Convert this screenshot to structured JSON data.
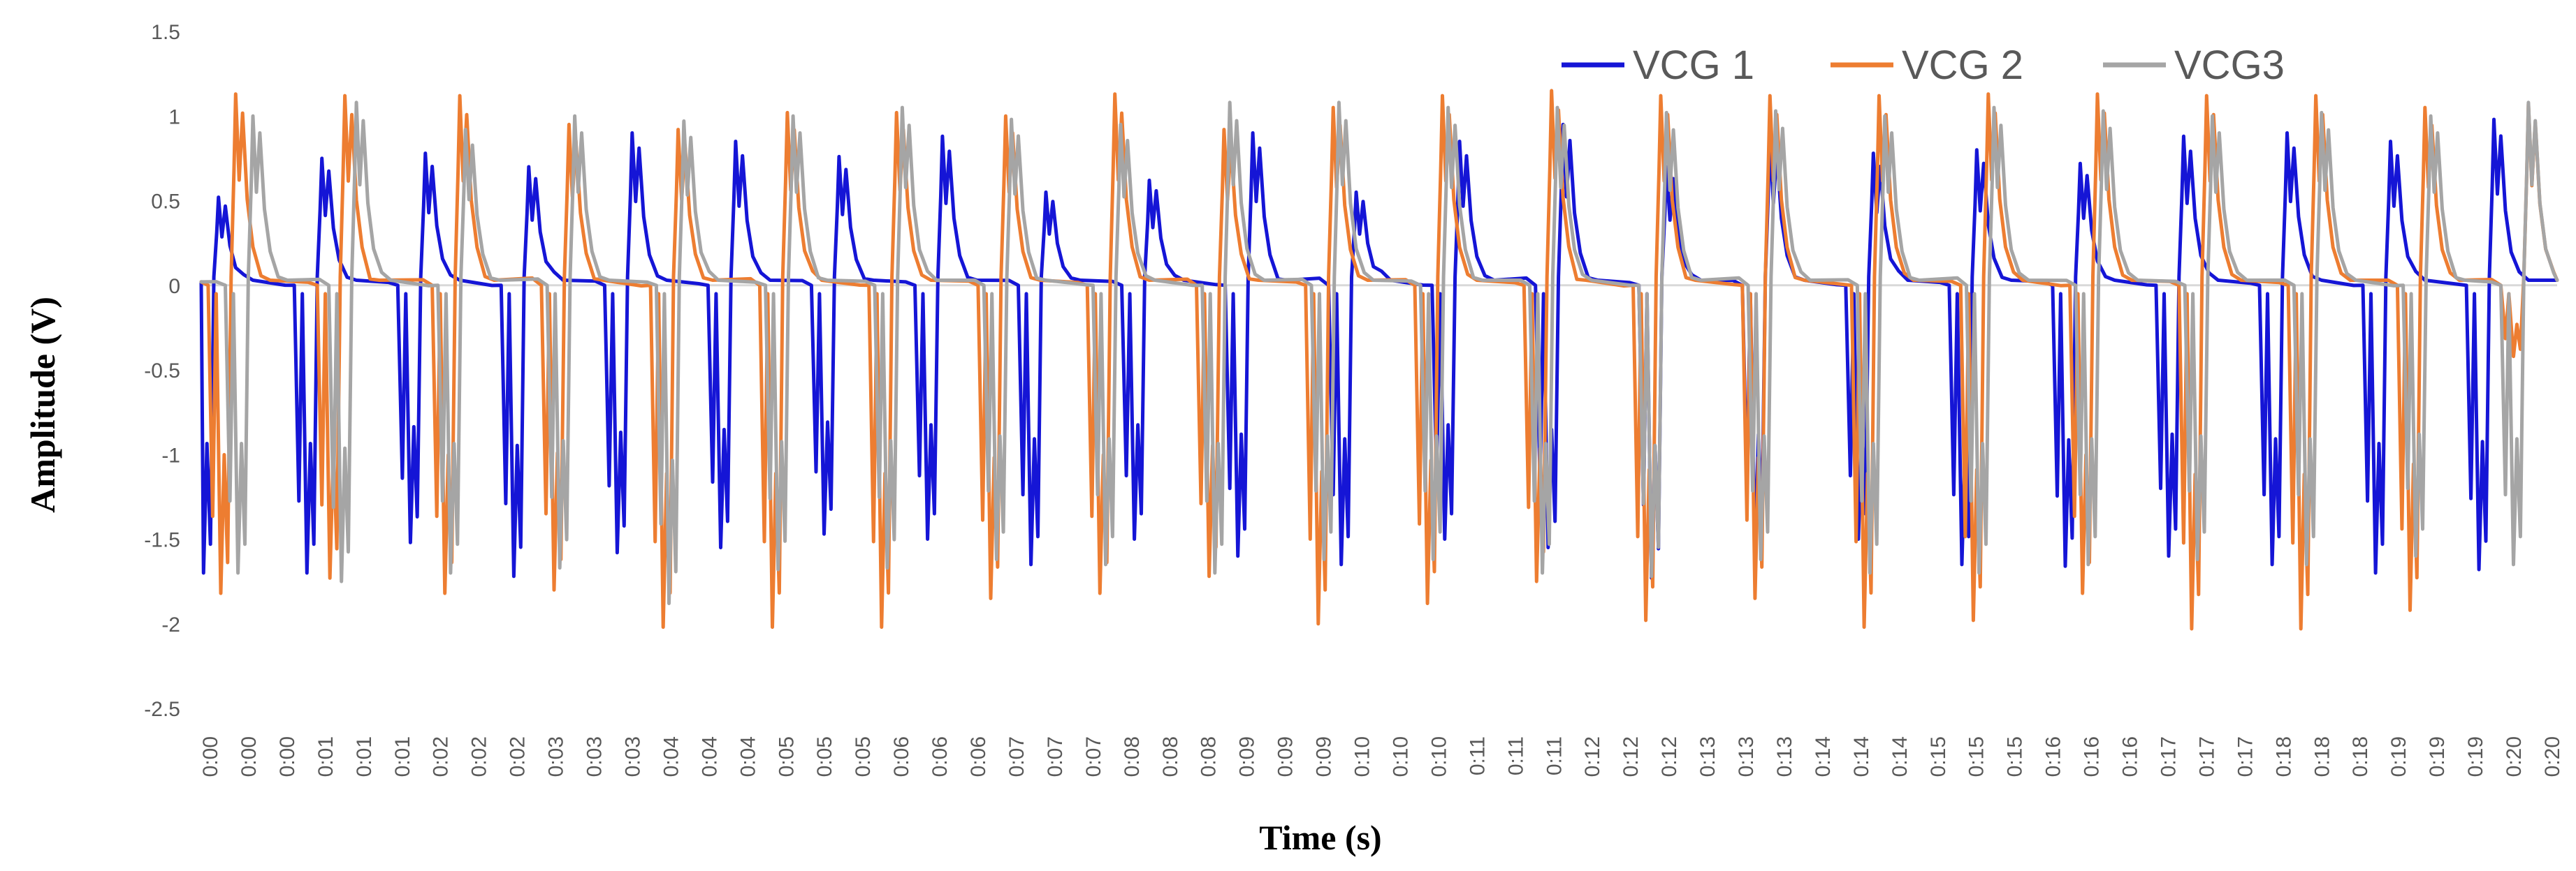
{
  "chart_data": {
    "type": "line",
    "title": "",
    "xlabel": "Time (s)",
    "ylabel": "Amplitude  (V)",
    "ylim": [
      -2.5,
      1.5
    ],
    "y_ticks": [
      "1.5",
      "1",
      "0.5",
      "0",
      "-0.5",
      "-1",
      "-1.5",
      "-2",
      "-2.5"
    ],
    "x_tick_labels": [
      "0:00",
      "0:00",
      "0:00",
      "0:01",
      "0:01",
      "0:01",
      "0:02",
      "0:02",
      "0:02",
      "0:03",
      "0:03",
      "0:03",
      "0:04",
      "0:04",
      "0:04",
      "0:05",
      "0:05",
      "0:05",
      "0:06",
      "0:06",
      "0:06",
      "0:07",
      "0:07",
      "0:07",
      "0:08",
      "0:08",
      "0:08",
      "0:09",
      "0:09",
      "0:09",
      "0:10",
      "0:10",
      "0:10",
      "0:11",
      "0:11",
      "0:11",
      "0:12",
      "0:12",
      "0:12",
      "0:13",
      "0:13",
      "0:13",
      "0:14",
      "0:14",
      "0:14",
      "0:15",
      "0:15",
      "0:15",
      "0:16",
      "0:16",
      "0:16",
      "0:17",
      "0:17",
      "0:17",
      "0:18",
      "0:18",
      "0:18",
      "0:19",
      "0:19",
      "0:19",
      "0:20",
      "0:20"
    ],
    "x_range_s": [
      0,
      20.5
    ],
    "grid": false,
    "legend_position": "top-right",
    "series": [
      {
        "name": "VCG 1",
        "color": "#1515d6",
        "beats": [
          {
            "t": 0.15,
            "pos": 0.52,
            "neg": -1.7
          },
          {
            "t": 1.05,
            "pos": 0.75,
            "neg": -1.7
          },
          {
            "t": 1.95,
            "pos": 0.78,
            "neg": -1.52
          },
          {
            "t": 2.85,
            "pos": 0.7,
            "neg": -1.72
          },
          {
            "t": 3.75,
            "pos": 0.9,
            "neg": -1.58
          },
          {
            "t": 4.65,
            "pos": 0.85,
            "neg": -1.55
          },
          {
            "t": 5.55,
            "pos": 0.76,
            "neg": -1.47
          },
          {
            "t": 6.45,
            "pos": 0.88,
            "neg": -1.5
          },
          {
            "t": 7.35,
            "pos": 0.55,
            "neg": -1.65
          },
          {
            "t": 8.25,
            "pos": 0.62,
            "neg": -1.5
          },
          {
            "t": 9.15,
            "pos": 0.9,
            "neg": -1.6
          },
          {
            "t": 10.05,
            "pos": 0.55,
            "neg": -1.65
          },
          {
            "t": 10.95,
            "pos": 0.85,
            "neg": -1.5
          },
          {
            "t": 11.85,
            "pos": 0.95,
            "neg": -1.55
          },
          {
            "t": 12.75,
            "pos": 0.7,
            "neg": -1.73
          },
          {
            "t": 13.65,
            "pos": 0.88,
            "neg": -1.6
          },
          {
            "t": 14.55,
            "pos": 0.78,
            "neg": -1.5
          },
          {
            "t": 15.45,
            "pos": 0.8,
            "neg": -1.65
          },
          {
            "t": 16.35,
            "pos": 0.72,
            "neg": -1.66
          },
          {
            "t": 17.25,
            "pos": 0.88,
            "neg": -1.6
          },
          {
            "t": 18.15,
            "pos": 0.9,
            "neg": -1.65
          },
          {
            "t": 19.05,
            "pos": 0.85,
            "neg": -1.7
          },
          {
            "t": 19.95,
            "pos": 0.98,
            "neg": -1.68
          }
        ]
      },
      {
        "name": "VCG 2",
        "color": "#ed7d31",
        "beats": [
          {
            "t": 0.3,
            "pos": 1.13,
            "neg": -1.82
          },
          {
            "t": 1.25,
            "pos": 1.12,
            "neg": -1.73
          },
          {
            "t": 2.25,
            "pos": 1.12,
            "neg": -1.82
          },
          {
            "t": 3.2,
            "pos": 0.95,
            "neg": -1.8
          },
          {
            "t": 4.15,
            "pos": 0.92,
            "neg": -2.02
          },
          {
            "t": 5.1,
            "pos": 1.02,
            "neg": -2.02
          },
          {
            "t": 6.05,
            "pos": 1.02,
            "neg": -2.02
          },
          {
            "t": 7.0,
            "pos": 1.0,
            "neg": -1.85
          },
          {
            "t": 7.95,
            "pos": 1.13,
            "neg": -1.82
          },
          {
            "t": 8.9,
            "pos": 0.92,
            "neg": -1.72
          },
          {
            "t": 9.85,
            "pos": 1.05,
            "neg": -2.0
          },
          {
            "t": 10.8,
            "pos": 1.12,
            "neg": -1.88
          },
          {
            "t": 11.75,
            "pos": 1.15,
            "neg": -1.75
          },
          {
            "t": 12.7,
            "pos": 1.12,
            "neg": -1.98
          },
          {
            "t": 13.65,
            "pos": 1.12,
            "neg": -1.85
          },
          {
            "t": 14.6,
            "pos": 1.12,
            "neg": -2.02
          },
          {
            "t": 15.55,
            "pos": 1.13,
            "neg": -1.98
          },
          {
            "t": 16.5,
            "pos": 1.13,
            "neg": -1.82
          },
          {
            "t": 17.45,
            "pos": 1.12,
            "neg": -2.03
          },
          {
            "t": 18.4,
            "pos": 1.12,
            "neg": -2.03
          },
          {
            "t": 19.35,
            "pos": 1.05,
            "neg": -1.92
          },
          {
            "t": 20.25,
            "pos": 1.07,
            "neg": -0.42
          }
        ]
      },
      {
        "name": "VCG3",
        "color": "#a5a5a5",
        "beats": [
          {
            "t": 0.45,
            "pos": 1.0,
            "neg": -1.7
          },
          {
            "t": 1.35,
            "pos": 1.08,
            "neg": -1.75
          },
          {
            "t": 2.3,
            "pos": 0.92,
            "neg": -1.7
          },
          {
            "t": 3.25,
            "pos": 1.0,
            "neg": -1.67
          },
          {
            "t": 4.2,
            "pos": 0.97,
            "neg": -1.88
          },
          {
            "t": 5.15,
            "pos": 1.0,
            "neg": -1.68
          },
          {
            "t": 6.1,
            "pos": 1.05,
            "neg": -1.67
          },
          {
            "t": 7.05,
            "pos": 0.98,
            "neg": -1.62
          },
          {
            "t": 8.0,
            "pos": 0.95,
            "neg": -1.65
          },
          {
            "t": 8.95,
            "pos": 1.08,
            "neg": -1.7
          },
          {
            "t": 9.9,
            "pos": 1.08,
            "neg": -1.62
          },
          {
            "t": 10.85,
            "pos": 1.05,
            "neg": -1.62
          },
          {
            "t": 11.8,
            "pos": 1.05,
            "neg": -1.7
          },
          {
            "t": 12.75,
            "pos": 1.02,
            "neg": -1.72
          },
          {
            "t": 13.7,
            "pos": 1.03,
            "neg": -1.62
          },
          {
            "t": 14.65,
            "pos": 1.0,
            "neg": -1.7
          },
          {
            "t": 15.6,
            "pos": 1.05,
            "neg": -1.7
          },
          {
            "t": 16.55,
            "pos": 1.03,
            "neg": -1.65
          },
          {
            "t": 17.5,
            "pos": 1.0,
            "neg": -1.62
          },
          {
            "t": 18.45,
            "pos": 1.02,
            "neg": -1.65
          },
          {
            "t": 19.4,
            "pos": 1.0,
            "neg": -1.6
          },
          {
            "t": 20.25,
            "pos": 1.08,
            "neg": -1.65
          }
        ]
      }
    ]
  }
}
